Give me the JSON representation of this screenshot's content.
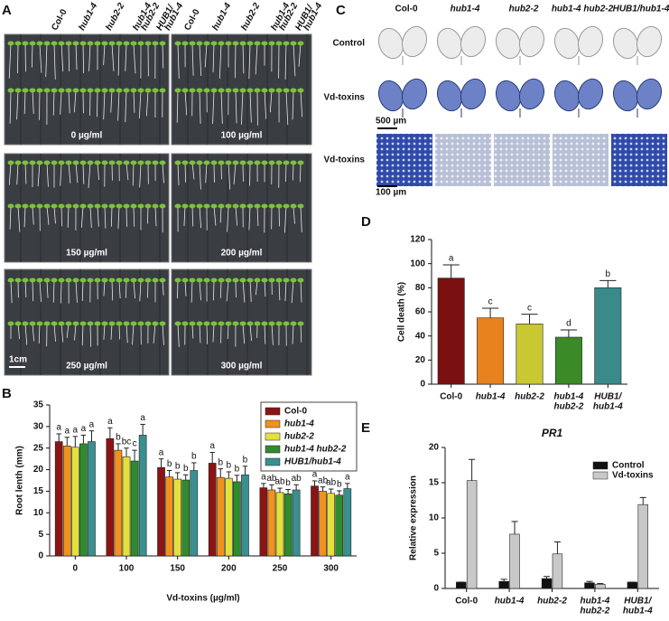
{
  "panel_labels": [
    "A",
    "B",
    "C",
    "D",
    "E"
  ],
  "panel_a": {
    "genotypes": [
      [
        "Col-0"
      ],
      [
        "hub1-4"
      ],
      [
        "hub2-2"
      ],
      [
        "hub1-4",
        "hub2-2"
      ],
      [
        "HUB1/",
        "hub1-4"
      ]
    ],
    "concentrations": [
      "0 µg/ml",
      "100 µg/ml",
      "150 µg/ml",
      "200 µg/ml",
      "250 µg/ml",
      "300 µg/ml"
    ],
    "scale_bar": "1cm"
  },
  "panel_c": {
    "genotypes": [
      "Col-0",
      "hub1-4",
      "hub2-2",
      "hub1-4 hub2-2",
      "HUB1/hub1-4"
    ],
    "rows": [
      "Control",
      "Vd-toxins",
      "Vd-toxins"
    ],
    "scale_bars": [
      "500 µm",
      "100 µm"
    ]
  },
  "chart_data": [
    {
      "type": "bar",
      "x_label": "Vd-toxins (µg/ml)",
      "y_label": "Root lenth (mm)",
      "categories": [
        "0",
        "100",
        "150",
        "200",
        "250",
        "300"
      ],
      "ylim": [
        0,
        35
      ],
      "yticks": [
        0,
        5,
        10,
        15,
        20,
        25,
        30,
        35
      ],
      "legend": "upper right",
      "legend_frame": true,
      "legend_style": "italic",
      "series": [
        {
          "name": "Col-0",
          "color": "#8b1414",
          "values": [
            26.5,
            27.2,
            20.5,
            21.5,
            15.8,
            16.2
          ],
          "errors": [
            1.8,
            2.5,
            2,
            2.5,
            1,
            1.2
          ],
          "letters": [
            "a",
            "a",
            "a",
            "a",
            "a",
            "a"
          ]
        },
        {
          "name": "hub1-4",
          "color": "#f0921e",
          "values": [
            25.5,
            24.5,
            18.3,
            18.2,
            15.3,
            15
          ],
          "errors": [
            2,
            1.5,
            1.5,
            2,
            1.2,
            1
          ],
          "letters": [
            "a",
            "b",
            "b",
            "b",
            "ab",
            "ab"
          ]
        },
        {
          "name": "hub2-2",
          "color": "#e4e13c",
          "values": [
            25.2,
            23,
            17.8,
            18,
            14.7,
            14.5
          ],
          "errors": [
            2.5,
            2,
            1.5,
            1.5,
            1,
            1
          ],
          "letters": [
            "a",
            "bc",
            "b",
            "b",
            "ab",
            "ab"
          ]
        },
        {
          "name": "hub1-4 hub2-2",
          "color": "#2e8b2e",
          "values": [
            26,
            22,
            17.6,
            17.2,
            14.4,
            14.1
          ],
          "errors": [
            2,
            2.5,
            1.2,
            1.5,
            1,
            1
          ],
          "letters": [
            "a",
            "c",
            "b",
            "b",
            "b",
            "b"
          ]
        },
        {
          "name": "HUB1/hub1-4",
          "color": "#3a9090",
          "values": [
            26.5,
            28,
            19.8,
            18.8,
            15.3,
            15.6
          ],
          "errors": [
            2.5,
            2.5,
            1.8,
            2,
            1.2,
            1.2
          ],
          "letters": [
            "a",
            "a",
            "b",
            "b",
            "ab",
            "a"
          ]
        }
      ]
    },
    {
      "type": "bar",
      "y_label": "Cell death (%)",
      "categories": [
        [
          "Col-0"
        ],
        [
          "hub1-4"
        ],
        [
          "hub2-2"
        ],
        [
          "hub1-4",
          "hub2-2"
        ],
        [
          "HUB1/",
          "hub1-4"
        ]
      ],
      "category_style": "italic",
      "ylim": [
        0,
        120
      ],
      "yticks": [
        0,
        20,
        40,
        60,
        80,
        100,
        120
      ],
      "values": [
        88,
        55,
        50,
        39,
        80
      ],
      "errors": [
        11,
        8,
        8,
        6,
        6
      ],
      "colors": [
        "#7a1010",
        "#e8821e",
        "#c8c832",
        "#3a8a28",
        "#3a8a8a"
      ],
      "letters": [
        "a",
        "c",
        "c",
        "d",
        "b"
      ]
    },
    {
      "type": "bar",
      "title": "PR1",
      "y_label": "Relative expression",
      "categories": [
        [
          "Col-0"
        ],
        [
          "hub1-4"
        ],
        [
          "hub2-2"
        ],
        [
          "hub1-4",
          "hub2-2"
        ],
        [
          "HUB1/",
          "hub1-4"
        ]
      ],
      "category_style": "italic",
      "ylim": [
        0,
        20
      ],
      "yticks": [
        0,
        5,
        10,
        15,
        20
      ],
      "legend": "upper right",
      "series": [
        {
          "name": "Control",
          "color": "#111111",
          "values": [
            0.9,
            1.0,
            1.4,
            0.8,
            0.9
          ],
          "errors": [
            0,
            0.3,
            0.3,
            0.2,
            0
          ]
        },
        {
          "name": "Vd-toxins",
          "color": "#c8c8c8",
          "values": [
            15.3,
            7.7,
            4.9,
            0.6,
            11.9
          ],
          "errors": [
            3,
            1.8,
            1.7,
            0.1,
            1
          ]
        }
      ]
    }
  ]
}
